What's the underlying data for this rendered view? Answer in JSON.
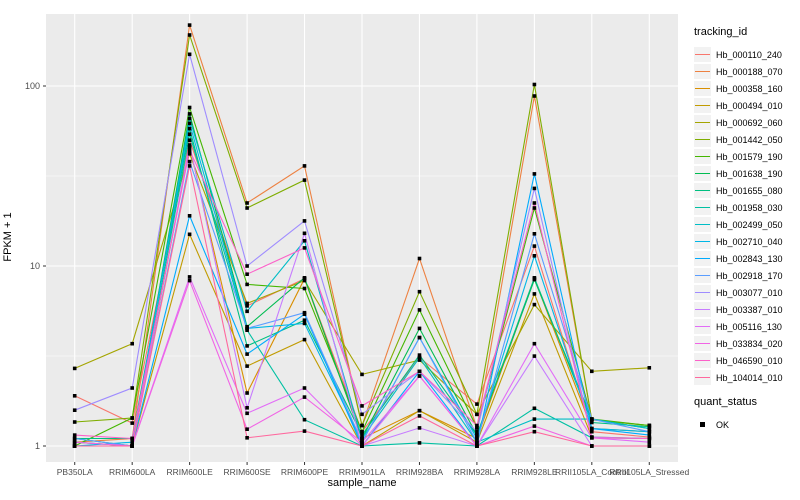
{
  "chart_data": {
    "type": "line",
    "title": "",
    "xlabel": "sample_name",
    "ylabel": "FPKM + 1",
    "y_scale": "log10",
    "y_ticks": [
      1,
      10,
      100
    ],
    "y_minor_ticks": [
      3.162,
      31.62
    ],
    "ylim": [
      0.82,
      250
    ],
    "grid": true,
    "panel_bg": "#EBEBEB",
    "grid_color": "#FFFFFF",
    "tick_label_color": "#4D4D4D",
    "point_marker": "black-square",
    "legend_position": "right",
    "legend_title": "tracking_id",
    "categories": [
      "PB350LA",
      "RRIM600LA",
      "RRIM600LE",
      "RRIM600SE",
      "RRIM600PE",
      "RRIM901LA",
      "RRIM928BA",
      "RRIM928LA",
      "RRIM928LE",
      "RRII105LA_Control",
      "RRII105LA_Stressed"
    ],
    "series": [
      {
        "name": "Hb_000110_240",
        "color": "#F8766D",
        "values": [
          1.9,
          1.34,
          50,
          6.0,
          8.5,
          1.2,
          3.1,
          1.71,
          12.9,
          1.2,
          1.12
        ]
      },
      {
        "name": "Hb_000188_070",
        "color": "#ED8141",
        "values": [
          1.05,
          1.1,
          218,
          22.4,
          36,
          1.3,
          11,
          1.26,
          88,
          1.4,
          1.3
        ]
      },
      {
        "name": "Hb_000358_160",
        "color": "#D98F00",
        "values": [
          1.0,
          1.0,
          46,
          1.97,
          8.5,
          1.1,
          1.57,
          1.1,
          8.5,
          1.25,
          1.2
        ]
      },
      {
        "name": "Hb_000494_010",
        "color": "#C19B00",
        "values": [
          1.05,
          1.0,
          15,
          2.78,
          3.9,
          1.0,
          1.57,
          1.05,
          7.0,
          1.12,
          1.1
        ]
      },
      {
        "name": "Hb_000692_060",
        "color": "#A4A500",
        "values": [
          2.7,
          3.7,
          42,
          6.2,
          8.3,
          2.5,
          3.0,
          1.5,
          6.1,
          2.6,
          2.72
        ]
      },
      {
        "name": "Hb_001442_050",
        "color": "#7FAD00",
        "values": [
          1.36,
          1.43,
          192,
          21,
          30,
          1.3,
          7.2,
          1.5,
          102,
          1.4,
          1.3
        ]
      },
      {
        "name": "Hb_001579_190",
        "color": "#44B600",
        "values": [
          1.0,
          1.43,
          76,
          7.9,
          7.5,
          1.2,
          5.7,
          1.26,
          21,
          1.41,
          1.3
        ]
      },
      {
        "name": "Hb_001638_190",
        "color": "#00BC51",
        "values": [
          1.1,
          1.0,
          70,
          4.6,
          8.6,
          1.1,
          4.5,
          1.15,
          8.4,
          1.41,
          1.25
        ]
      },
      {
        "name": "Hb_001655_080",
        "color": "#00BF80",
        "values": [
          1.1,
          1.1,
          58,
          3.6,
          5.0,
          1.15,
          3.2,
          1.15,
          8.6,
          1.35,
          1.28
        ]
      },
      {
        "name": "Hb_001958_030",
        "color": "#00C0A2",
        "values": [
          1.0,
          1.0,
          54,
          4.4,
          1.4,
          1.0,
          1.04,
          1.0,
          1.62,
          1.11,
          1.1
        ]
      },
      {
        "name": "Hb_002499_050",
        "color": "#00BDC6",
        "values": [
          1.05,
          1.0,
          66,
          5.6,
          13.8,
          1.1,
          3.1,
          1.05,
          1.41,
          1.41,
          1.25
        ]
      },
      {
        "name": "Hb_002710_040",
        "color": "#00B7E6",
        "values": [
          1.0,
          1.05,
          62,
          4.5,
          4.8,
          1.05,
          4.0,
          1.1,
          11.4,
          1.25,
          1.2
        ]
      },
      {
        "name": "Hb_002843_130",
        "color": "#00ABFD",
        "values": [
          1.0,
          1.0,
          19,
          3.24,
          5.4,
          1.0,
          2.6,
          1.0,
          32.5,
          1.25,
          1.15
        ]
      },
      {
        "name": "Hb_002918_170",
        "color": "#5A9DFF",
        "values": [
          1.1,
          1.0,
          38,
          4.5,
          5.5,
          1.05,
          4.0,
          1.05,
          15.1,
          1.41,
          1.2
        ]
      },
      {
        "name": "Hb_003077_010",
        "color": "#9F8CFF",
        "values": [
          1.58,
          2.1,
          150,
          10,
          17.8,
          1.5,
          2.6,
          1.2,
          27,
          1.12,
          1.1
        ]
      },
      {
        "name": "Hb_003387_010",
        "color": "#C77CFF",
        "values": [
          1.0,
          1.0,
          47,
          1.63,
          15.2,
          1.0,
          1.26,
          1.0,
          3.16,
          1.0,
          1.0
        ]
      },
      {
        "name": "Hb_005116_130",
        "color": "#E26DF7",
        "values": [
          1.0,
          1.0,
          8.7,
          1.52,
          2.1,
          1.0,
          2.45,
          1.0,
          3.7,
          1.11,
          1.05
        ]
      },
      {
        "name": "Hb_033834_020",
        "color": "#F164E5",
        "values": [
          1.05,
          1.0,
          8.3,
          1.24,
          1.87,
          1.05,
          2.45,
          1.0,
          1.29,
          1.0,
          1.0
        ]
      },
      {
        "name": "Hb_046590_010",
        "color": "#FC61C9",
        "values": [
          1.15,
          1.1,
          44,
          9.0,
          12.6,
          1.67,
          2.6,
          1.3,
          22.4,
          1.11,
          1.1
        ]
      },
      {
        "name": "Hb_104014_010",
        "color": "#FF689E",
        "values": [
          1.0,
          1.0,
          36,
          1.11,
          1.21,
          1.0,
          1.47,
          1.0,
          1.2,
          1.0,
          1.0
        ]
      }
    ],
    "quant_legend": {
      "title": "quant_status",
      "items": [
        {
          "label": "OK",
          "marker_color": "#000000"
        }
      ]
    }
  }
}
